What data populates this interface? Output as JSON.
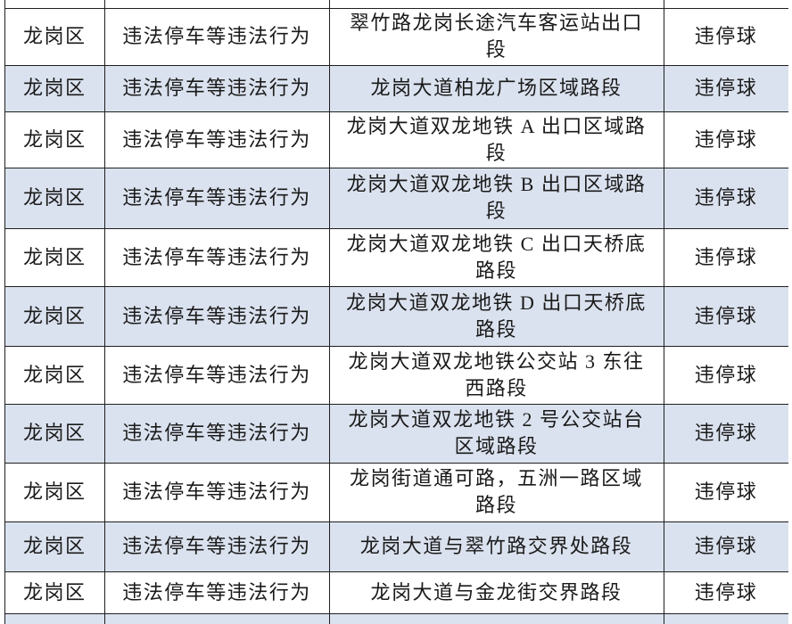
{
  "colors": {
    "row_bg": "#ffffff",
    "row_alt_bg": "#dbe2ef",
    "border": "#1f1f1f",
    "text": "#1a1a1a"
  },
  "table": {
    "column_keys": [
      "district",
      "violation",
      "location",
      "device"
    ],
    "rows": [
      {
        "district": "龙岗区",
        "violation": "违法停车等违法行为",
        "location": "翠竹路龙岗长途汽车客运站出口段",
        "device": "违停球"
      },
      {
        "district": "龙岗区",
        "violation": "违法停车等违法行为",
        "location": "龙岗大道柏龙广场区域路段",
        "device": "违停球"
      },
      {
        "district": "龙岗区",
        "violation": "违法停车等违法行为",
        "location": "龙岗大道双龙地铁 A 出口区域路段",
        "device": "违停球"
      },
      {
        "district": "龙岗区",
        "violation": "违法停车等违法行为",
        "location": "龙岗大道双龙地铁 B 出口区域路段",
        "device": "违停球"
      },
      {
        "district": "龙岗区",
        "violation": "违法停车等违法行为",
        "location": "龙岗大道双龙地铁 C 出口天桥底路段",
        "device": "违停球"
      },
      {
        "district": "龙岗区",
        "violation": "违法停车等违法行为",
        "location": "龙岗大道双龙地铁 D 出口天桥底路段",
        "device": "违停球"
      },
      {
        "district": "龙岗区",
        "violation": "违法停车等违法行为",
        "location": "龙岗大道双龙地铁公交站 3 东往西路段",
        "device": "违停球"
      },
      {
        "district": "龙岗区",
        "violation": "违法停车等违法行为",
        "location": "龙岗大道双龙地铁 2 号公交站台区域路段",
        "device": "违停球"
      },
      {
        "district": "龙岗区",
        "violation": "违法停车等违法行为",
        "location": "龙岗街道通可路，五洲一路区域路段",
        "device": "违停球"
      },
      {
        "district": "龙岗区",
        "violation": "违法停车等违法行为",
        "location": "龙岗大道与翠竹路交界处路段",
        "device": "违停球"
      },
      {
        "district": "龙岗区",
        "violation": "违法停车等违法行为",
        "location": "龙岗大道与金龙街交界路段",
        "device": "违停球"
      }
    ]
  }
}
